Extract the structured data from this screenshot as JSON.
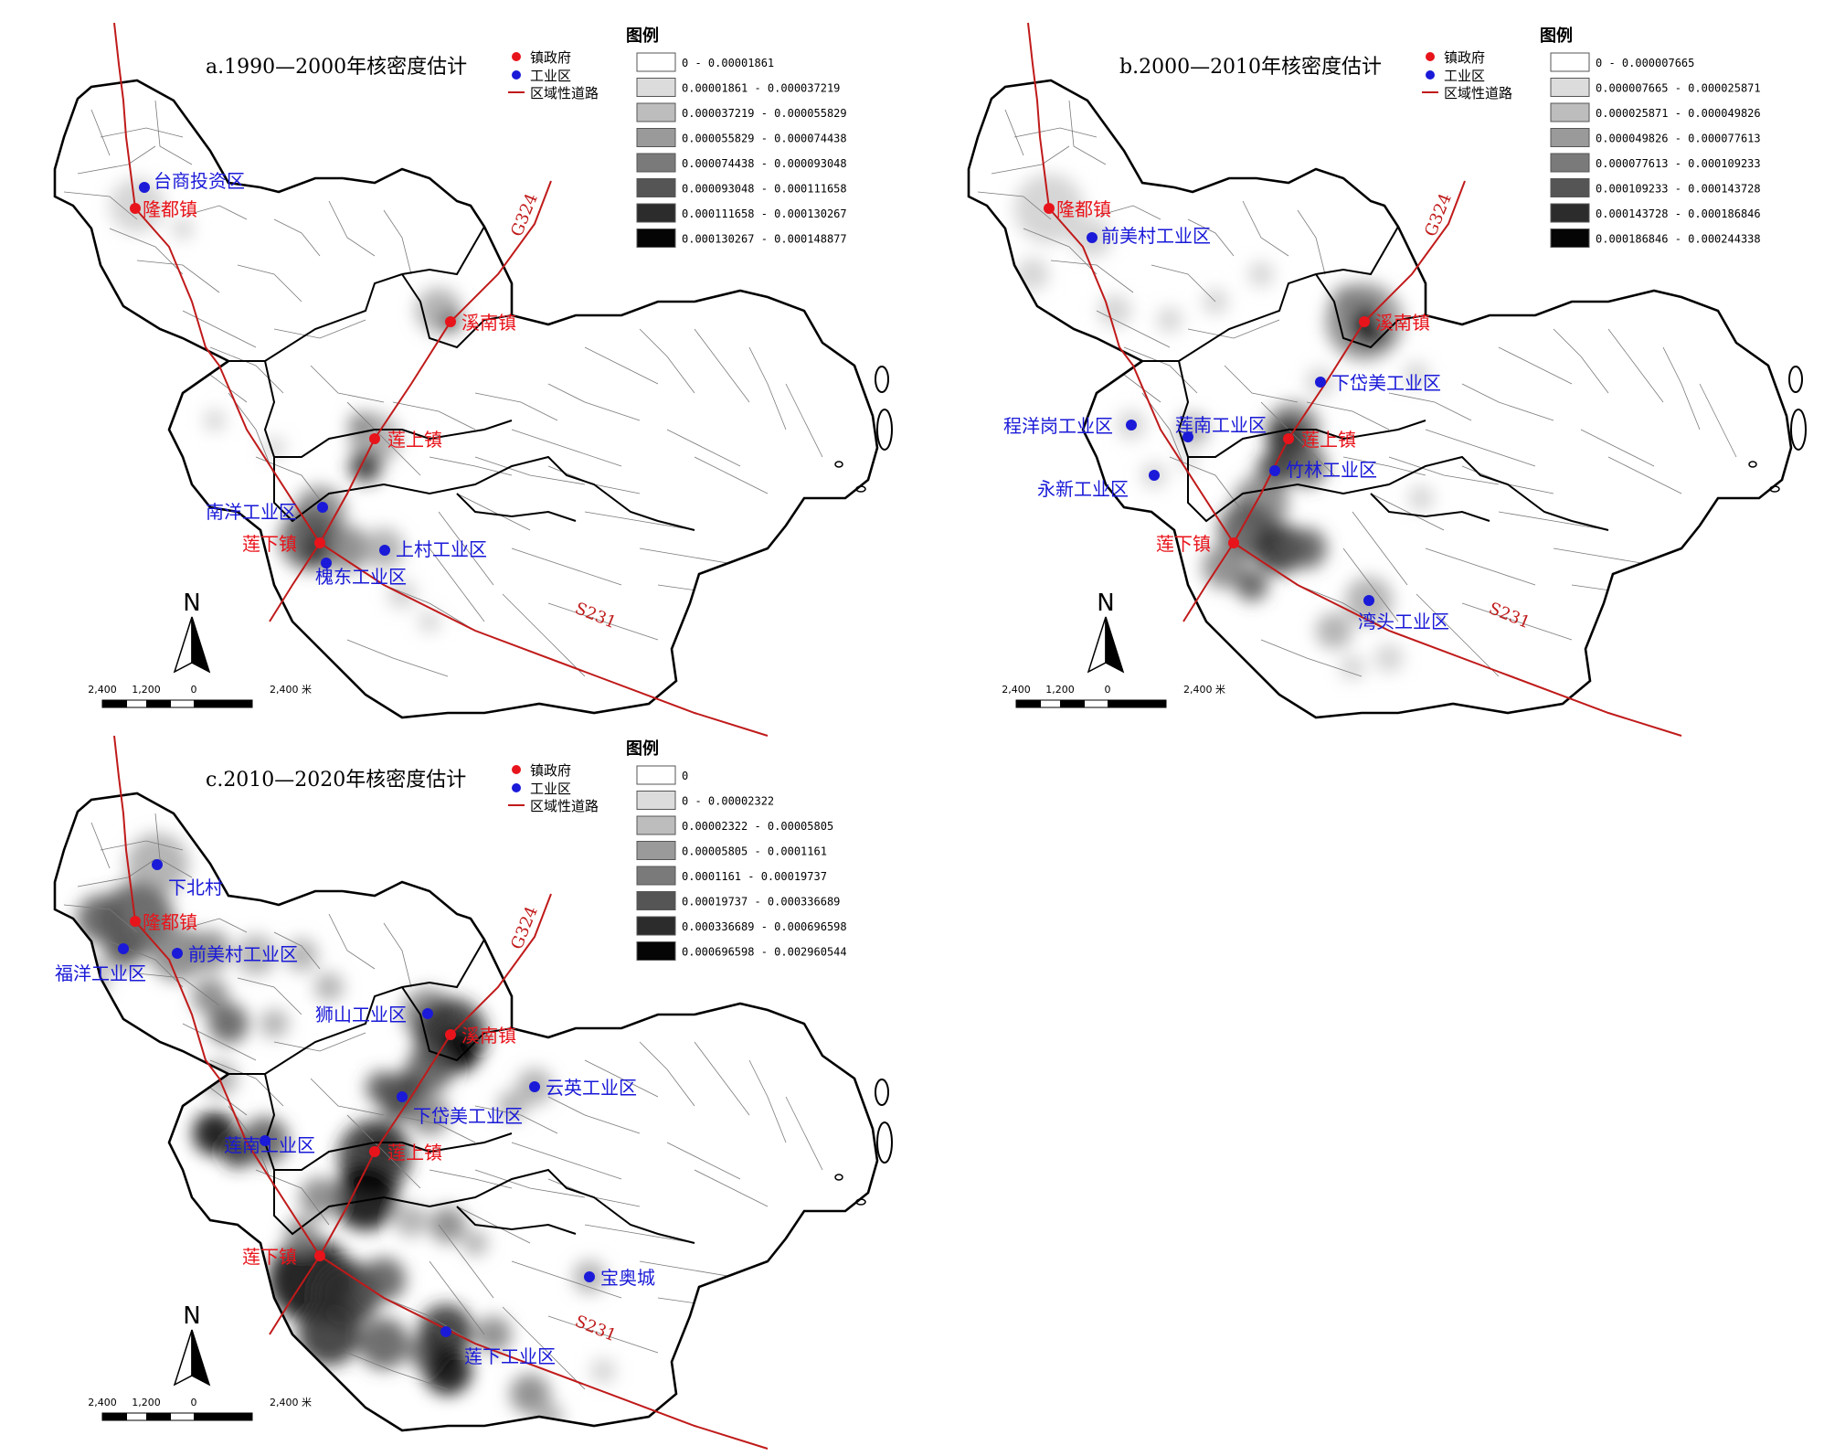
{
  "legend_heading": "图例",
  "point_keys": {
    "town": "镇政府",
    "industrial": "工业区",
    "road": "区域性道路"
  },
  "colors": {
    "town": "#e8141b",
    "industrial": "#1a1ad8",
    "road": "#c01a1a",
    "boundary": "#000000"
  },
  "north_label": "N",
  "scale_labels": [
    "2,400",
    "1,200",
    "0",
    "2,400 米"
  ],
  "road_names": [
    "G324",
    "S231"
  ],
  "panels": [
    {
      "title": "a.1990—2000年核密度估计",
      "classes": [
        "0 - 0.00001861",
        "0.00001861 - 0.000037219",
        "0.000037219 - 0.000055829",
        "0.000055829 - 0.000074438",
        "0.000074438 - 0.000093048",
        "0.000093048 - 0.000111658",
        "0.000111658 - 0.000130267",
        "0.000130267 - 0.000148877"
      ],
      "towns": [
        "隆都镇",
        "溪南镇",
        "莲上镇",
        "莲下镇"
      ],
      "industrial_zones": [
        "台商投资区",
        "南洋工业区",
        "上村工业区",
        "槐东工业区"
      ]
    },
    {
      "title": "b.2000—2010年核密度估计",
      "classes": [
        "0 - 0.000007665",
        "0.000007665 - 0.000025871",
        "0.000025871 - 0.000049826",
        "0.000049826 - 0.000077613",
        "0.000077613 - 0.000109233",
        "0.000109233 - 0.000143728",
        "0.000143728 - 0.000186846",
        "0.000186846 - 0.000244338"
      ],
      "towns": [
        "隆都镇",
        "溪南镇",
        "莲上镇",
        "莲下镇"
      ],
      "industrial_zones": [
        "前美村工业区",
        "下岱美工业区",
        "程洋岗工业区",
        "莲南工业区",
        "永新工业区",
        "竹林工业区",
        "湾头工业区"
      ]
    },
    {
      "title": "c.2010—2020年核密度估计",
      "classes": [
        "0",
        "0 - 0.00002322",
        "0.00002322 - 0.00005805",
        "0.00005805 - 0.0001161",
        "0.0001161 - 0.00019737",
        "0.00019737 - 0.000336689",
        "0.000336689 - 0.000696598",
        "0.000696598 - 0.002960544"
      ],
      "towns": [
        "隆都镇",
        "溪南镇",
        "莲上镇",
        "莲下镇"
      ],
      "industrial_zones": [
        "下北村",
        "前美村工业区",
        "福洋工业区",
        "狮山工业区",
        "云英工业区",
        "下岱美工业区",
        "莲南工业区",
        "宝奥城",
        "莲下工业区"
      ]
    }
  ]
}
